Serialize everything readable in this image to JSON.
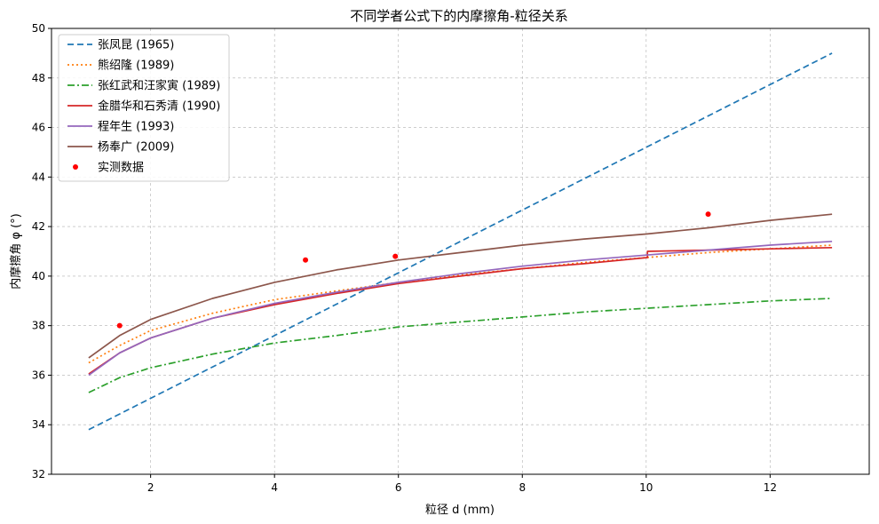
{
  "chart_data": {
    "type": "line",
    "title": "不同学者公式下的内摩擦角-粒径关系",
    "xlabel": "粒径 d (mm)",
    "ylabel": "内摩擦角 φ (°)",
    "xlim": [
      0.4,
      13.6
    ],
    "ylim": [
      32,
      50
    ],
    "xticks": [
      2,
      4,
      6,
      8,
      10,
      12
    ],
    "yticks": [
      32,
      34,
      36,
      38,
      40,
      42,
      44,
      46,
      48,
      50
    ],
    "grid": true,
    "legend_position": "top-left",
    "series": [
      {
        "name": "张凤昆 (1965)",
        "style": "dashed",
        "color": "#1f77b4",
        "x": [
          1,
          13
        ],
        "y": [
          33.8,
          49.0
        ]
      },
      {
        "name": "熊绍隆 (1989)",
        "style": "dotted",
        "color": "#ff7f0e",
        "x": [
          1,
          1.5,
          2,
          3,
          4,
          5,
          6,
          7,
          8,
          9,
          10,
          11,
          12,
          13
        ],
        "y": [
          36.5,
          37.2,
          37.8,
          38.5,
          39.05,
          39.4,
          39.75,
          40.05,
          40.3,
          40.55,
          40.75,
          40.95,
          41.1,
          41.25
        ]
      },
      {
        "name": "张红武和汪家寅 (1989)",
        "style": "dashdot",
        "color": "#2ca02c",
        "x": [
          1,
          1.5,
          2,
          3,
          4,
          5,
          6,
          7,
          8,
          9,
          10,
          11,
          12,
          13
        ],
        "y": [
          35.3,
          35.9,
          36.3,
          36.85,
          37.3,
          37.6,
          37.95,
          38.15,
          38.35,
          38.55,
          38.7,
          38.85,
          39.0,
          39.1
        ]
      },
      {
        "name": "金腊华和石秀清 (1990)",
        "style": "solid",
        "color": "#d62728",
        "x": [
          1,
          1.5,
          2,
          3,
          4,
          5,
          6,
          7,
          8,
          9,
          10.02,
          10.02,
          11,
          12,
          13
        ],
        "y": [
          36.05,
          36.9,
          37.5,
          38.3,
          38.85,
          39.3,
          39.7,
          40.0,
          40.3,
          40.5,
          40.75,
          41.0,
          41.05,
          41.1,
          41.15
        ]
      },
      {
        "name": "程年生 (1993)",
        "style": "solid",
        "color": "#9467bd",
        "x": [
          1,
          1.5,
          2,
          3,
          4,
          5,
          6,
          7,
          8,
          9,
          10,
          11,
          12,
          13
        ],
        "y": [
          36.0,
          36.9,
          37.5,
          38.3,
          38.9,
          39.35,
          39.75,
          40.1,
          40.4,
          40.65,
          40.85,
          41.05,
          41.25,
          41.4
        ]
      },
      {
        "name": "杨奉广 (2009)",
        "style": "solid",
        "color": "#8c564b",
        "x": [
          1,
          1.5,
          2,
          3,
          4,
          5,
          6,
          7,
          8,
          9,
          10,
          11,
          12,
          13
        ],
        "y": [
          36.7,
          37.6,
          38.25,
          39.1,
          39.75,
          40.25,
          40.65,
          40.95,
          41.25,
          41.5,
          41.7,
          41.95,
          42.25,
          42.5
        ]
      }
    ],
    "points": {
      "name": "实测数据",
      "color": "#ff0000",
      "x": [
        1.5,
        4.5,
        5.95,
        11.0
      ],
      "y": [
        38.0,
        40.65,
        40.8,
        42.5
      ]
    }
  }
}
